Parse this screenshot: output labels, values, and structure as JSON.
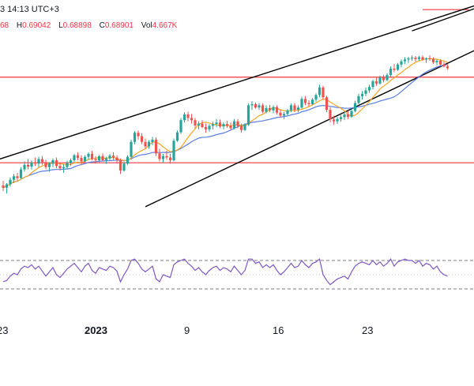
{
  "header": {
    "interval_label": "3 14:13 UTC+3",
    "ohlc": [
      {
        "key": "",
        "value": "68"
      },
      {
        "key": "H",
        "value": "0.69042"
      },
      {
        "key": "L",
        "value": "0.68898"
      },
      {
        "key": "C",
        "value": "0.68901"
      }
    ],
    "volume_key": "Vol",
    "volume_value": "4.667K"
  },
  "colors": {
    "up": "#26a69a",
    "down": "#ef5350",
    "ma_fast": "#f5a623",
    "ma_slow": "#5b7fe3",
    "trendline": "#000000",
    "horizontal_level": "#f23645",
    "rsi_line": "#7e57c2",
    "rsi_band": "#787b86"
  },
  "x_axis": {
    "labels": [
      {
        "text": "23",
        "bold": false
      },
      {
        "text": "2023",
        "bold": true
      },
      {
        "text": "9",
        "bold": false
      },
      {
        "text": "16",
        "bold": false
      },
      {
        "text": "23",
        "bold": false
      }
    ]
  },
  "chart_data": {
    "type": "candlestick",
    "y_price_range": [
      0.605,
      0.705
    ],
    "horizontal_levels": [
      0.6713,
      0.6339
    ],
    "short_level": {
      "price": 0.7008,
      "from_candle": 118,
      "to_candle": 131
    },
    "channel_lines": [
      {
        "from": [
          -4,
          0.634
        ],
        "to": [
          134,
          0.7032
        ]
      },
      {
        "from": [
          40,
          0.6147
        ],
        "to": [
          134,
          0.684
        ]
      },
      {
        "from": [
          115,
          0.6915
        ],
        "to": [
          134,
          0.702
        ]
      }
    ],
    "candles": [
      [
        0.624,
        0.626,
        0.6215,
        0.623
      ],
      [
        0.623,
        0.625,
        0.6205,
        0.6245
      ],
      [
        0.6245,
        0.6275,
        0.6235,
        0.6265
      ],
      [
        0.6265,
        0.629,
        0.625,
        0.628
      ],
      [
        0.628,
        0.6295,
        0.6258,
        0.6272
      ],
      [
        0.6272,
        0.632,
        0.6268,
        0.631
      ],
      [
        0.631,
        0.6345,
        0.63,
        0.633
      ],
      [
        0.633,
        0.6355,
        0.631,
        0.6322
      ],
      [
        0.6322,
        0.635,
        0.631,
        0.634
      ],
      [
        0.634,
        0.6362,
        0.6325,
        0.6335
      ],
      [
        0.6335,
        0.6365,
        0.632,
        0.6355
      ],
      [
        0.6355,
        0.6368,
        0.633,
        0.6342
      ],
      [
        0.6342,
        0.6352,
        0.631,
        0.632
      ],
      [
        0.632,
        0.6342,
        0.63,
        0.6335
      ],
      [
        0.6335,
        0.6358,
        0.632,
        0.635
      ],
      [
        0.635,
        0.6362,
        0.6315,
        0.6325
      ],
      [
        0.6325,
        0.634,
        0.6305,
        0.6315
      ],
      [
        0.6315,
        0.6332,
        0.6295,
        0.632
      ],
      [
        0.632,
        0.6348,
        0.6312,
        0.6338
      ],
      [
        0.6338,
        0.6358,
        0.6325,
        0.635
      ],
      [
        0.635,
        0.6378,
        0.634,
        0.6372
      ],
      [
        0.6372,
        0.6385,
        0.635,
        0.636
      ],
      [
        0.636,
        0.6372,
        0.633,
        0.6345
      ],
      [
        0.6345,
        0.6372,
        0.634,
        0.6365
      ],
      [
        0.6365,
        0.6385,
        0.6352,
        0.6378
      ],
      [
        0.6378,
        0.6392,
        0.635,
        0.6355
      ],
      [
        0.6355,
        0.6368,
        0.6335,
        0.635
      ],
      [
        0.635,
        0.6372,
        0.634,
        0.6368
      ],
      [
        0.6368,
        0.638,
        0.6345,
        0.635
      ],
      [
        0.635,
        0.6365,
        0.6335,
        0.6358
      ],
      [
        0.6358,
        0.6378,
        0.6348,
        0.637
      ],
      [
        0.637,
        0.6385,
        0.6352,
        0.6362
      ],
      [
        0.6362,
        0.6372,
        0.6335,
        0.635
      ],
      [
        0.635,
        0.6358,
        0.629,
        0.6305
      ],
      [
        0.6305,
        0.6345,
        0.63,
        0.6335
      ],
      [
        0.6335,
        0.6372,
        0.633,
        0.6365
      ],
      [
        0.6365,
        0.644,
        0.636,
        0.643
      ],
      [
        0.643,
        0.6478,
        0.642,
        0.647
      ],
      [
        0.647,
        0.648,
        0.644,
        0.6455
      ],
      [
        0.6455,
        0.6468,
        0.642,
        0.643
      ],
      [
        0.643,
        0.6445,
        0.64,
        0.641
      ],
      [
        0.641,
        0.6438,
        0.64,
        0.643
      ],
      [
        0.643,
        0.6452,
        0.6415,
        0.644
      ],
      [
        0.644,
        0.645,
        0.6368,
        0.638
      ],
      [
        0.638,
        0.64,
        0.6345,
        0.6355
      ],
      [
        0.6355,
        0.6378,
        0.634,
        0.6368
      ],
      [
        0.6368,
        0.6392,
        0.6352,
        0.6362
      ],
      [
        0.6362,
        0.6378,
        0.6335,
        0.635
      ],
      [
        0.635,
        0.6445,
        0.6345,
        0.6435
      ],
      [
        0.6435,
        0.648,
        0.643,
        0.6472
      ],
      [
        0.6472,
        0.6535,
        0.6465,
        0.6525
      ],
      [
        0.6525,
        0.656,
        0.6515,
        0.655
      ],
      [
        0.655,
        0.6562,
        0.652,
        0.6535
      ],
      [
        0.6535,
        0.6552,
        0.651,
        0.6525
      ],
      [
        0.6525,
        0.6535,
        0.649,
        0.6502
      ],
      [
        0.6502,
        0.652,
        0.6485,
        0.651
      ],
      [
        0.651,
        0.6525,
        0.649,
        0.6495
      ],
      [
        0.6495,
        0.651,
        0.647,
        0.6485
      ],
      [
        0.6485,
        0.6508,
        0.6475,
        0.65
      ],
      [
        0.65,
        0.6518,
        0.6485,
        0.6508
      ],
      [
        0.6508,
        0.653,
        0.6495,
        0.6515
      ],
      [
        0.6515,
        0.6528,
        0.649,
        0.6498
      ],
      [
        0.6498,
        0.6515,
        0.6485,
        0.6508
      ],
      [
        0.6508,
        0.6522,
        0.6492,
        0.65
      ],
      [
        0.65,
        0.6515,
        0.6482,
        0.649
      ],
      [
        0.649,
        0.653,
        0.6485,
        0.652
      ],
      [
        0.652,
        0.653,
        0.649,
        0.65
      ],
      [
        0.65,
        0.651,
        0.647,
        0.6482
      ],
      [
        0.6482,
        0.6512,
        0.6478,
        0.6505
      ],
      [
        0.6505,
        0.6598,
        0.65,
        0.659
      ],
      [
        0.659,
        0.6608,
        0.657,
        0.6595
      ],
      [
        0.6595,
        0.6602,
        0.6575,
        0.658
      ],
      [
        0.658,
        0.66,
        0.657,
        0.659
      ],
      [
        0.659,
        0.6598,
        0.6555,
        0.6562
      ],
      [
        0.6562,
        0.659,
        0.6555,
        0.6578
      ],
      [
        0.6578,
        0.6592,
        0.656,
        0.6568
      ],
      [
        0.6568,
        0.659,
        0.6555,
        0.6582
      ],
      [
        0.6582,
        0.659,
        0.655,
        0.6558
      ],
      [
        0.6558,
        0.6572,
        0.6535,
        0.6545
      ],
      [
        0.6545,
        0.656,
        0.653,
        0.6552
      ],
      [
        0.6552,
        0.6575,
        0.6545,
        0.6568
      ],
      [
        0.6568,
        0.6598,
        0.656,
        0.659
      ],
      [
        0.659,
        0.66,
        0.656,
        0.657
      ],
      [
        0.657,
        0.659,
        0.656,
        0.658
      ],
      [
        0.658,
        0.6628,
        0.6575,
        0.6618
      ],
      [
        0.6618,
        0.663,
        0.659,
        0.66
      ],
      [
        0.66,
        0.6612,
        0.6585,
        0.6595
      ],
      [
        0.6595,
        0.6622,
        0.659,
        0.6615
      ],
      [
        0.6615,
        0.6642,
        0.6605,
        0.6635
      ],
      [
        0.6635,
        0.668,
        0.6625,
        0.6668
      ],
      [
        0.6668,
        0.6675,
        0.6615,
        0.6625
      ],
      [
        0.6625,
        0.6632,
        0.656,
        0.657
      ],
      [
        0.657,
        0.6582,
        0.6515,
        0.6528
      ],
      [
        0.6528,
        0.6545,
        0.6505,
        0.652
      ],
      [
        0.652,
        0.654,
        0.6508,
        0.653
      ],
      [
        0.653,
        0.6548,
        0.6518,
        0.6538
      ],
      [
        0.6538,
        0.656,
        0.6525,
        0.655
      ],
      [
        0.655,
        0.6565,
        0.653,
        0.654
      ],
      [
        0.654,
        0.6575,
        0.6535,
        0.6565
      ],
      [
        0.6565,
        0.661,
        0.656,
        0.66
      ],
      [
        0.66,
        0.664,
        0.6595,
        0.663
      ],
      [
        0.663,
        0.6652,
        0.6615,
        0.664
      ],
      [
        0.664,
        0.6668,
        0.663,
        0.6655
      ],
      [
        0.6655,
        0.668,
        0.6645,
        0.667
      ],
      [
        0.667,
        0.6702,
        0.666,
        0.6695
      ],
      [
        0.6695,
        0.6712,
        0.6675,
        0.6685
      ],
      [
        0.6685,
        0.672,
        0.668,
        0.6712
      ],
      [
        0.6712,
        0.6722,
        0.669,
        0.67
      ],
      [
        0.67,
        0.673,
        0.6695,
        0.6722
      ],
      [
        0.6722,
        0.676,
        0.6715,
        0.675
      ],
      [
        0.675,
        0.677,
        0.6735,
        0.6745
      ],
      [
        0.6745,
        0.6775,
        0.674,
        0.6768
      ],
      [
        0.6768,
        0.679,
        0.6755,
        0.6782
      ],
      [
        0.6782,
        0.68,
        0.677,
        0.679
      ],
      [
        0.679,
        0.6802,
        0.6775,
        0.6795
      ],
      [
        0.6795,
        0.6808,
        0.6785,
        0.6798
      ],
      [
        0.6798,
        0.6805,
        0.678,
        0.6792
      ],
      [
        0.6792,
        0.6806,
        0.6784,
        0.68
      ],
      [
        0.68,
        0.6808,
        0.6785,
        0.679
      ],
      [
        0.679,
        0.68,
        0.6775,
        0.6795
      ],
      [
        0.6795,
        0.6808,
        0.6785,
        0.6792
      ],
      [
        0.6792,
        0.68,
        0.677,
        0.6778
      ],
      [
        0.6778,
        0.679,
        0.6765,
        0.6785
      ],
      [
        0.6785,
        0.6792,
        0.676,
        0.6768
      ],
      [
        0.6768,
        0.678,
        0.6755,
        0.676
      ],
      [
        0.676,
        0.677,
        0.6745,
        0.6752
      ]
    ],
    "ma_fast": {
      "name": "",
      "length_hint": "fast"
    },
    "ma_slow": {
      "name": "",
      "length_hint": "slow"
    },
    "rsi": {
      "range": [
        0,
        100
      ],
      "bands": [
        70,
        30
      ],
      "values": [
        40,
        42,
        48,
        52,
        50,
        58,
        62,
        60,
        64,
        58,
        62,
        55,
        48,
        54,
        60,
        50,
        46,
        52,
        58,
        62,
        66,
        60,
        54,
        62,
        66,
        56,
        52,
        60,
        58,
        56,
        62,
        60,
        55,
        40,
        50,
        58,
        70,
        72,
        66,
        58,
        54,
        58,
        62,
        44,
        40,
        50,
        48,
        46,
        64,
        68,
        70,
        72,
        66,
        62,
        56,
        60,
        54,
        50,
        56,
        60,
        62,
        56,
        60,
        58,
        54,
        62,
        56,
        50,
        56,
        72,
        72,
        66,
        68,
        60,
        64,
        60,
        64,
        56,
        50,
        54,
        60,
        66,
        60,
        62,
        70,
        64,
        60,
        66,
        68,
        72,
        50,
        42,
        36,
        40,
        44,
        46,
        48,
        44,
        54,
        62,
        66,
        68,
        66,
        64,
        70,
        64,
        68,
        62,
        66,
        72,
        62,
        68,
        70,
        72,
        70,
        70,
        66,
        70,
        62,
        66,
        64,
        58,
        62,
        54,
        50,
        48
      ]
    }
  }
}
